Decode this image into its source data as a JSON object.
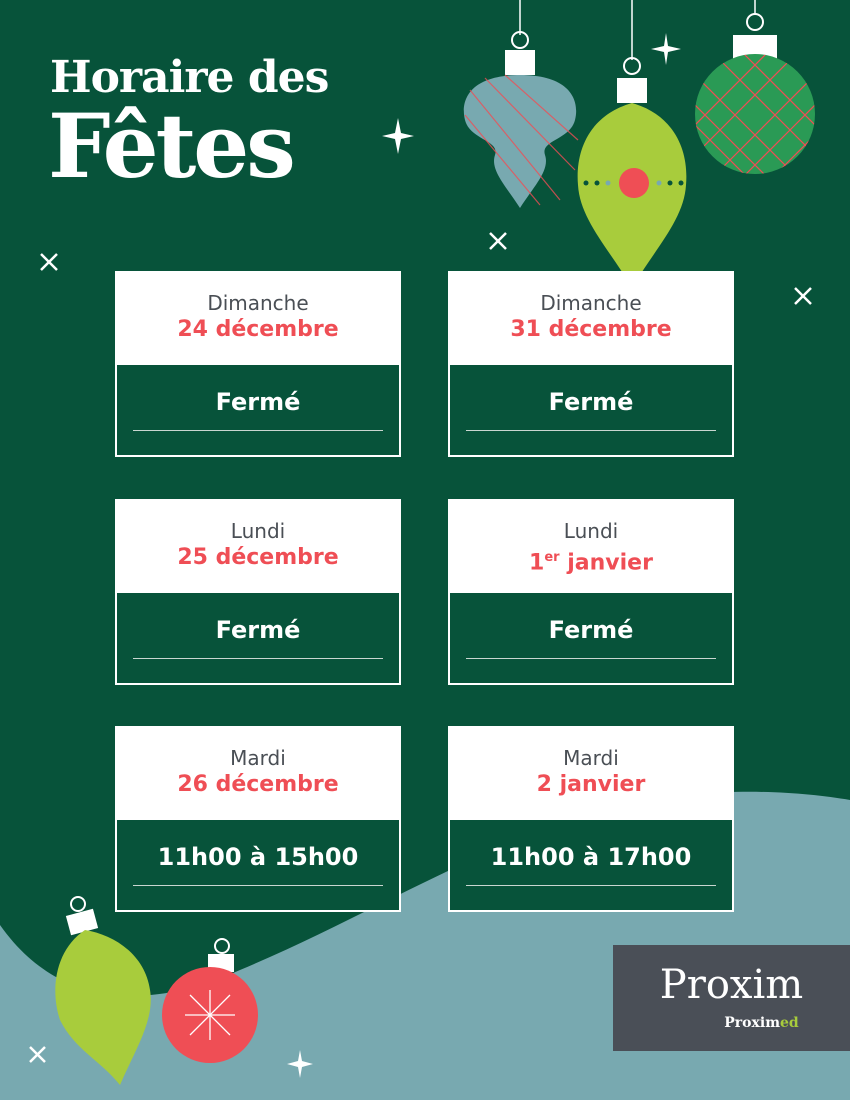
{
  "title": {
    "line1": "Horaire des",
    "line2": "Fêtes"
  },
  "schedule": [
    {
      "day": "Dimanche",
      "date": "24 décembre",
      "hours": "Fermé"
    },
    {
      "day": "Dimanche",
      "date": "31 décembre",
      "hours": "Fermé"
    },
    {
      "day": "Lundi",
      "date": "25 décembre",
      "hours": "Fermé"
    },
    {
      "day": "Lundi",
      "date_num": "1",
      "date_sup": "er",
      "date_rest": " janvier",
      "hours": "Fermé"
    },
    {
      "day": "Mardi",
      "date": "26 décembre",
      "hours": "11h00 à 15h00"
    },
    {
      "day": "Mardi",
      "date": "2 janvier",
      "hours": "11h00 à 17h00"
    }
  ],
  "logo": {
    "brand": "Proxim",
    "sub_a": "Proxim",
    "sub_b": "ed"
  },
  "colors": {
    "background": "#07533a",
    "accent": "#ef4e55",
    "lime": "#a8cc3c",
    "teal": "#78a9b0",
    "logo_bg": "#4a4f57"
  }
}
